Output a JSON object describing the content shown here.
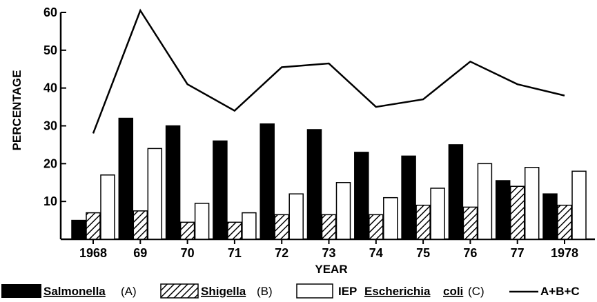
{
  "chart_data": {
    "type": "bar",
    "title": "",
    "xlabel": "YEAR",
    "ylabel": "PERCENTAGE",
    "ylim": [
      0,
      60
    ],
    "yticks": [
      10,
      20,
      30,
      40,
      50,
      60
    ],
    "categories": [
      "1968",
      "69",
      "70",
      "71",
      "72",
      "73",
      "74",
      "75",
      "76",
      "77",
      "1978"
    ],
    "series": [
      {
        "name": "Salmonella",
        "suffix": "(A)",
        "style": "solid",
        "color": "#000000",
        "values": [
          5,
          32,
          30,
          26,
          30.5,
          29,
          23,
          22,
          25,
          15.5,
          12
        ]
      },
      {
        "name": "Shigella",
        "suffix": "(B)",
        "style": "hatched",
        "color": "#000000",
        "values": [
          7,
          7.5,
          4.5,
          4.5,
          6.5,
          6.5,
          6.5,
          9,
          8.5,
          14,
          9
        ]
      },
      {
        "name": "IEP Escherichia coli",
        "prefix": "IEP",
        "genus": "Escherichia",
        "species": "coli",
        "suffix": "(C)",
        "style": "open",
        "color": "#ffffff",
        "values": [
          17,
          24,
          9.5,
          7,
          12,
          15,
          11,
          13.5,
          20,
          19,
          18
        ]
      }
    ],
    "line": {
      "name": "A+B+C",
      "values": [
        28,
        60.5,
        41,
        34,
        45.5,
        46.5,
        35,
        37,
        47,
        41,
        38
      ]
    },
    "grid": false,
    "legend_position": "bottom"
  }
}
